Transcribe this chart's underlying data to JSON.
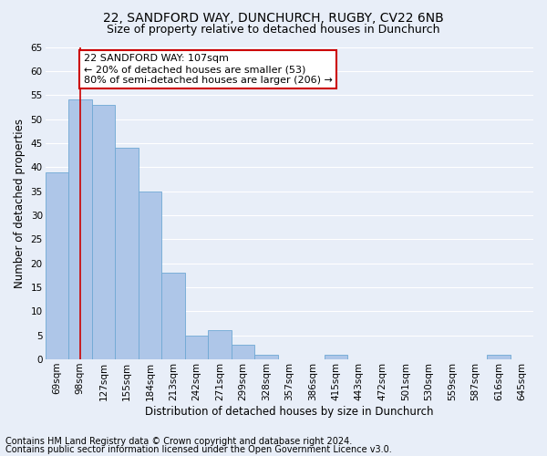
{
  "title_line1": "22, SANDFORD WAY, DUNCHURCH, RUGBY, CV22 6NB",
  "title_line2": "Size of property relative to detached houses in Dunchurch",
  "xlabel": "Distribution of detached houses by size in Dunchurch",
  "ylabel": "Number of detached properties",
  "bar_color": "#aec6e8",
  "bar_edge_color": "#6fa8d4",
  "background_color": "#e8eef8",
  "grid_color": "#ffffff",
  "categories": [
    "69sqm",
    "98sqm",
    "127sqm",
    "155sqm",
    "184sqm",
    "213sqm",
    "242sqm",
    "271sqm",
    "299sqm",
    "328sqm",
    "357sqm",
    "386sqm",
    "415sqm",
    "443sqm",
    "472sqm",
    "501sqm",
    "530sqm",
    "559sqm",
    "587sqm",
    "616sqm",
    "645sqm"
  ],
  "values": [
    39,
    54,
    53,
    44,
    35,
    18,
    5,
    6,
    3,
    1,
    0,
    0,
    1,
    0,
    0,
    0,
    0,
    0,
    0,
    1,
    0
  ],
  "vline_x": 1,
  "annotation_text": "22 SANDFORD WAY: 107sqm\n← 20% of detached houses are smaller (53)\n80% of semi-detached houses are larger (206) →",
  "annotation_box_color": "#ffffff",
  "annotation_box_edge_color": "#cc0000",
  "vline_color": "#cc0000",
  "ylim": [
    0,
    65
  ],
  "yticks": [
    0,
    5,
    10,
    15,
    20,
    25,
    30,
    35,
    40,
    45,
    50,
    55,
    60,
    65
  ],
  "footnote1": "Contains HM Land Registry data © Crown copyright and database right 2024.",
  "footnote2": "Contains public sector information licensed under the Open Government Licence v3.0.",
  "title_fontsize": 10,
  "subtitle_fontsize": 9,
  "axis_label_fontsize": 8.5,
  "tick_fontsize": 7.5,
  "annotation_fontsize": 8,
  "footnote_fontsize": 7
}
